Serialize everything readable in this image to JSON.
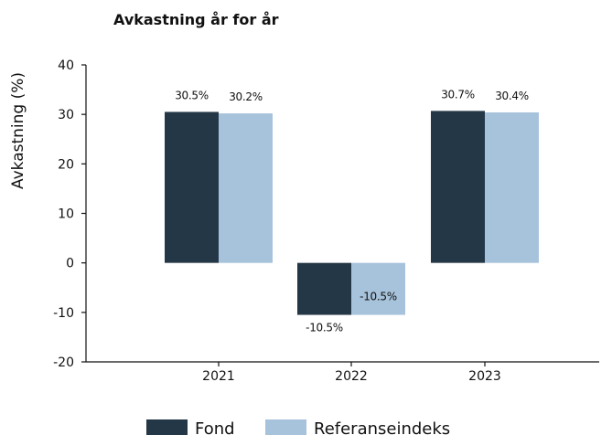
{
  "chart_data": {
    "type": "bar",
    "title": "Avkastning år for år",
    "xlabel": "",
    "ylabel": "Avkastning (%)",
    "categories": [
      "2021",
      "2022",
      "2023"
    ],
    "series": [
      {
        "name": "Fond",
        "values": [
          30.5,
          -10.5,
          30.7
        ],
        "labels": [
          "30.5%",
          "-10.5%",
          "30.7%"
        ],
        "color": "#243746"
      },
      {
        "name": "Referanseindeks",
        "values": [
          30.2,
          -10.5,
          30.4
        ],
        "labels": [
          "30.2%",
          "-10.5%",
          "30.4%"
        ],
        "color": "#a7c2db"
      }
    ],
    "ylim": [
      -20,
      40
    ],
    "yticks": [
      -20,
      -10,
      0,
      10,
      20,
      30,
      40
    ],
    "ytick_labels": [
      "-20",
      "-10",
      "0",
      "10",
      "20",
      "30",
      "40"
    ],
    "grid": false,
    "legend_position": "bottom-center"
  }
}
